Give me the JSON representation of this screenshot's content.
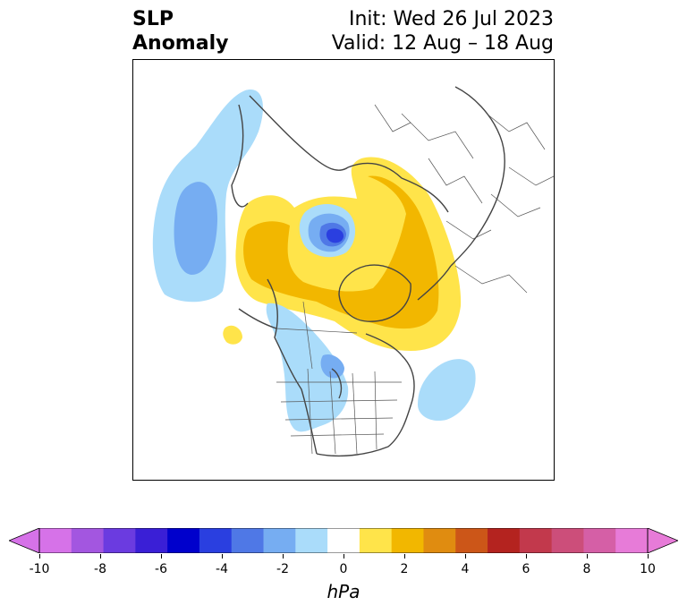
{
  "header": {
    "title_line1": "SLP",
    "title_line2": "Anomaly",
    "init_text": "Init: Wed 26 Jul 2023",
    "valid_text": "Valid: 12 Aug – 18 Aug"
  },
  "map": {
    "projection": "polar stereographic (North America / Arctic)",
    "features": [
      "country-borders",
      "us-state-borders",
      "canadian-province-borders",
      "coastlines"
    ]
  },
  "colorbar": {
    "units": "hPa",
    "ticks": [
      "-10",
      "-8",
      "-6",
      "-4",
      "-2",
      "0",
      "2",
      "4",
      "6",
      "8",
      "10"
    ],
    "levels": [
      -10,
      -9,
      -8,
      -7,
      -6,
      -5,
      -4,
      -3,
      -2,
      -1,
      1,
      2,
      3,
      4,
      5,
      6,
      7,
      8,
      9,
      10
    ],
    "colors": [
      "#d672e8",
      "#a356e0",
      "#6b3be0",
      "#3a1fd6",
      "#0000cc",
      "#2a3fe0",
      "#4f78e6",
      "#76adf2",
      "#aadcfa",
      "#ffffff",
      "#ffe44a",
      "#f2b700",
      "#e08c10",
      "#cc5618",
      "#b4231f",
      "#c2394c",
      "#cc4e7a",
      "#d55fa6",
      "#e77bd8"
    ],
    "extend": "both"
  },
  "anomaly_colors": {
    "neg_weak": "#aadcfa",
    "neg_mid": "#76adf2",
    "neg_strong": "#4f78e6",
    "neg_core": "#2a3fe0",
    "pos_weak": "#ffe44a",
    "pos_mid": "#f2b700"
  }
}
